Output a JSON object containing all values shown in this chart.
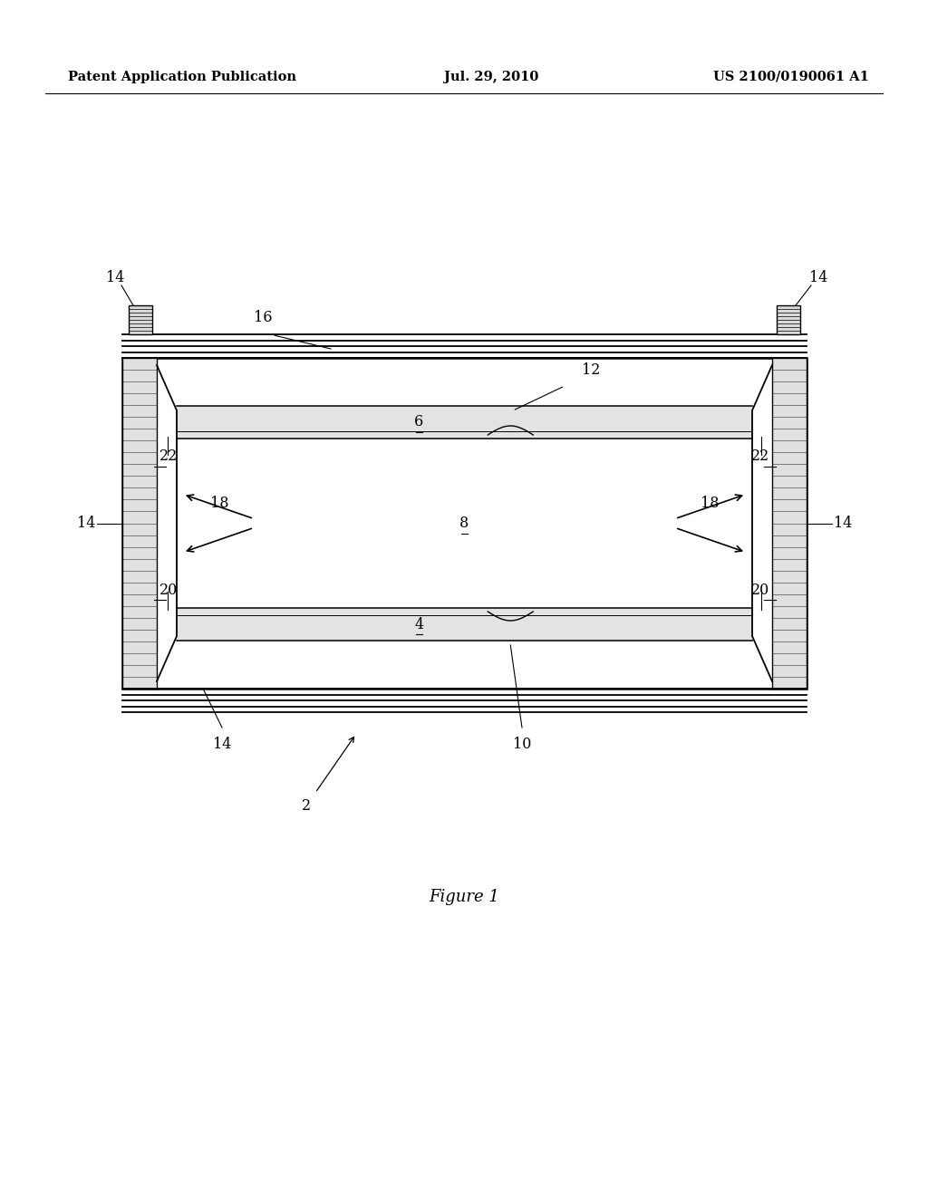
{
  "bg_color": "#ffffff",
  "header_left": "Patent Application Publication",
  "header_center": "Jul. 29, 2010",
  "header_right": "US 2100/0190061 A1",
  "figure_label": "Figure 1",
  "page_width": 10.24,
  "page_height": 13.2,
  "dpi": 100
}
